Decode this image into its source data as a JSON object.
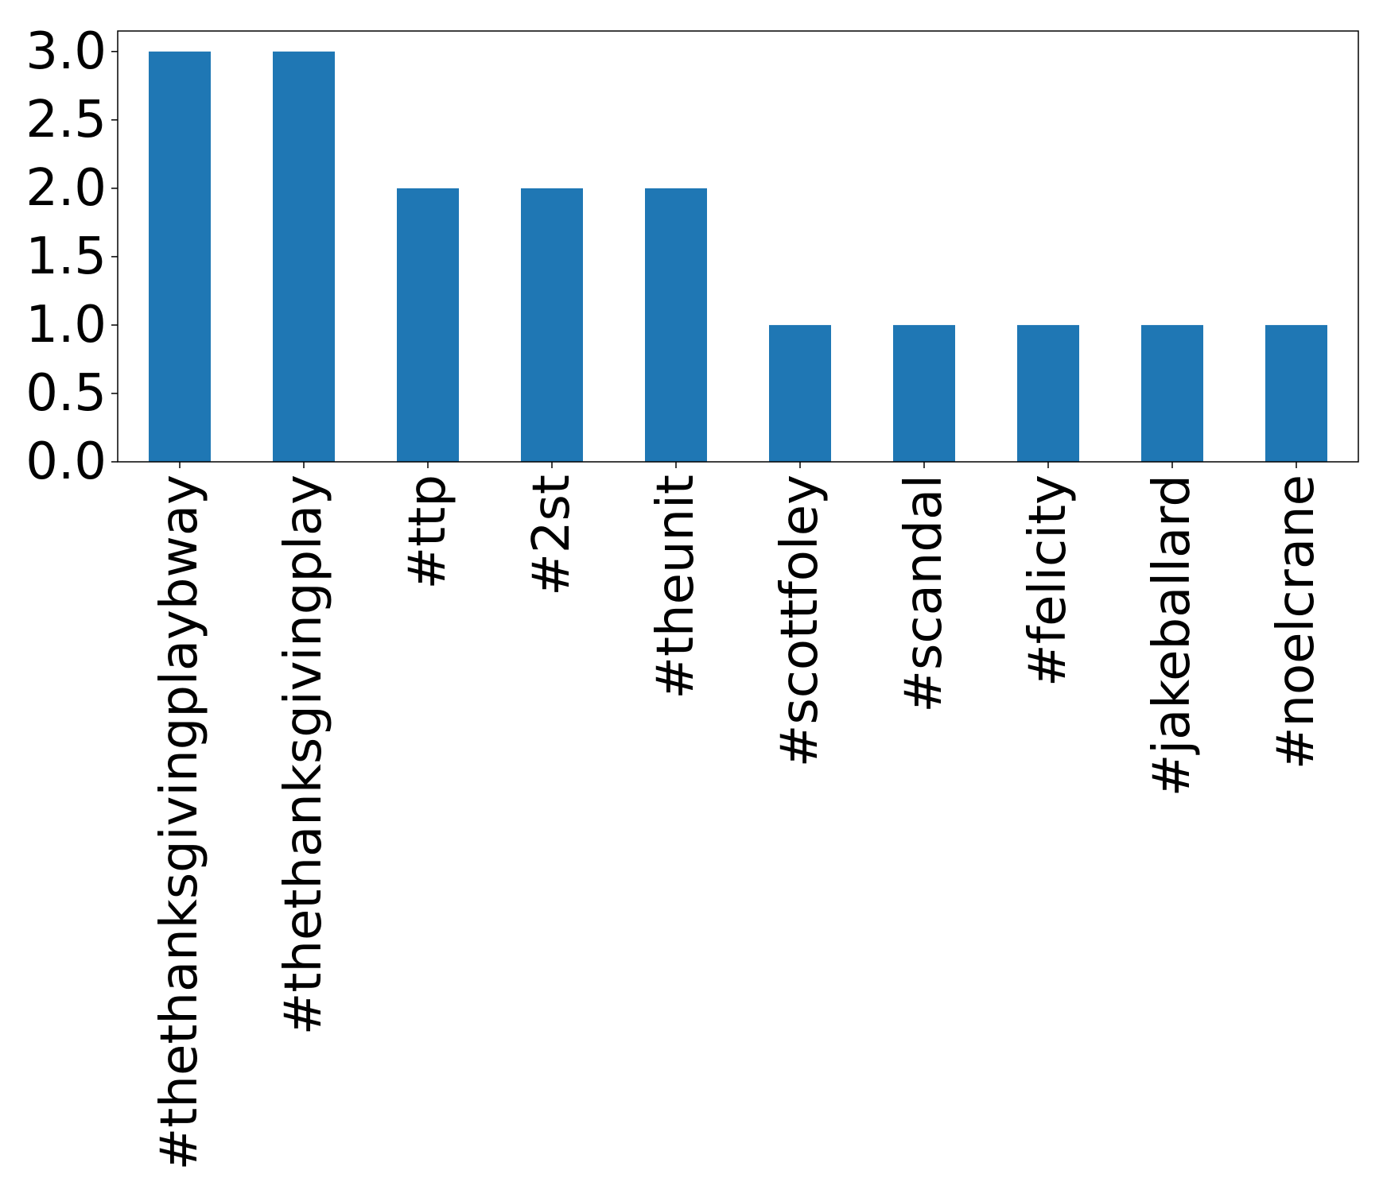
{
  "chart_data": {
    "type": "bar",
    "categories": [
      "#thethanksgivingplaybway",
      "#thethanksgivingplay",
      "#ttp",
      "#2st",
      "#theunit",
      "#scottfoley",
      "#scandal",
      "#felicity",
      "#jakeballard",
      "#noelcrane"
    ],
    "values": [
      3,
      3,
      2,
      2,
      2,
      1,
      1,
      1,
      1,
      1
    ],
    "color": "#1f77b4",
    "ylim": [
      0,
      3.15
    ],
    "yticks": [
      {
        "value": 0,
        "label": "0.0"
      },
      {
        "value": 0.5,
        "label": "0.5"
      },
      {
        "value": 1,
        "label": "1.0"
      },
      {
        "value": 1.5,
        "label": "1.5"
      },
      {
        "value": 2,
        "label": "2.0"
      },
      {
        "value": 2.5,
        "label": "2.5"
      },
      {
        "value": 3,
        "label": "3.0"
      }
    ],
    "grid": false
  }
}
